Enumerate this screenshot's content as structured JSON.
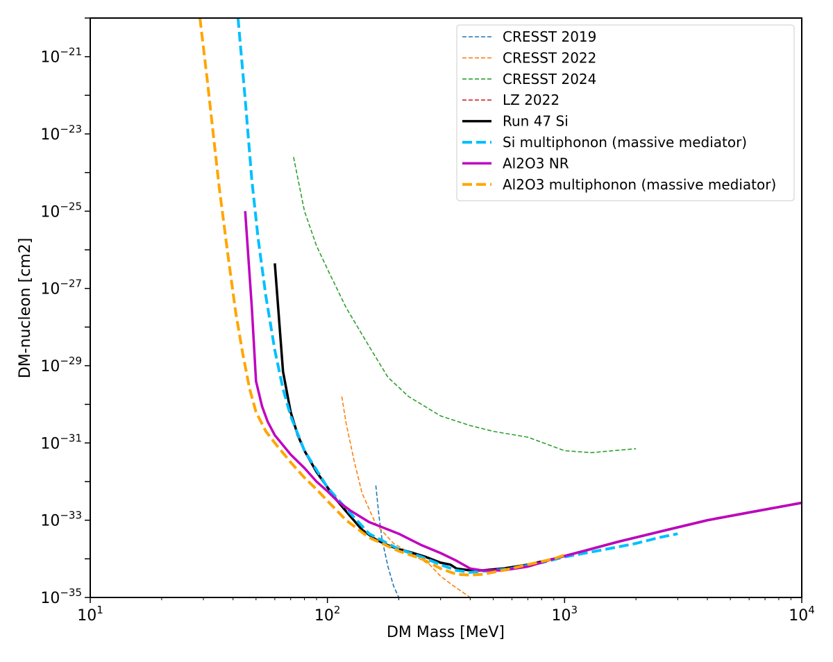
{
  "chart_data": {
    "type": "line",
    "xlabel": "DM Mass [MeV]",
    "ylabel": "DM-nucleon [cm2]",
    "xscale": "log",
    "yscale": "log",
    "xlim": [
      10,
      10000
    ],
    "ylim": [
      1e-35,
      1e-20
    ],
    "grid": false,
    "legend_position": "top-right",
    "x_tick_labels": [
      {
        "base": "10",
        "exp": "1",
        "value": 10
      },
      {
        "base": "10",
        "exp": "2",
        "value": 100
      },
      {
        "base": "10",
        "exp": "3",
        "value": 1000
      },
      {
        "base": "10",
        "exp": "4",
        "value": 10000
      }
    ],
    "y_tick_labels": [
      {
        "base": "10",
        "exp": "−21",
        "value": -21
      },
      {
        "base": "10",
        "exp": "−23",
        "value": -23
      },
      {
        "base": "10",
        "exp": "−25",
        "value": -25
      },
      {
        "base": "10",
        "exp": "−27",
        "value": -27
      },
      {
        "base": "10",
        "exp": "−29",
        "value": -29
      },
      {
        "base": "10",
        "exp": "−31",
        "value": -31
      },
      {
        "base": "10",
        "exp": "−33",
        "value": -33
      },
      {
        "base": "10",
        "exp": "−35",
        "value": -35
      }
    ],
    "series": [
      {
        "name": "CRESST 2019",
        "color": "#1f77b4",
        "style": "dashed-thin",
        "points": [
          [
            160,
            -32.1
          ],
          [
            165,
            -32.9
          ],
          [
            170,
            -33.5
          ],
          [
            180,
            -34.2
          ],
          [
            190,
            -34.7
          ],
          [
            200,
            -35.0
          ]
        ]
      },
      {
        "name": "CRESST 2022",
        "color": "#ff7f0e",
        "style": "dashed-thin",
        "points": [
          [
            115,
            -29.8
          ],
          [
            120,
            -30.5
          ],
          [
            130,
            -31.5
          ],
          [
            140,
            -32.3
          ],
          [
            160,
            -33.1
          ],
          [
            190,
            -33.6
          ],
          [
            230,
            -33.9
          ],
          [
            270,
            -34.15
          ],
          [
            300,
            -34.45
          ],
          [
            340,
            -34.7
          ],
          [
            400,
            -35.0
          ]
        ]
      },
      {
        "name": "CRESST 2024",
        "color": "#2ca02c",
        "style": "dashed-thin",
        "points": [
          [
            72,
            -23.6
          ],
          [
            80,
            -25.0
          ],
          [
            90,
            -25.9
          ],
          [
            100,
            -26.5
          ],
          [
            120,
            -27.5
          ],
          [
            150,
            -28.5
          ],
          [
            180,
            -29.3
          ],
          [
            220,
            -29.8
          ],
          [
            300,
            -30.3
          ],
          [
            400,
            -30.55
          ],
          [
            500,
            -30.7
          ],
          [
            700,
            -30.85
          ],
          [
            1000,
            -31.2
          ],
          [
            1300,
            -31.25
          ],
          [
            1600,
            -31.2
          ],
          [
            2000,
            -31.15
          ]
        ]
      },
      {
        "name": "LZ 2022",
        "color": "#d62728",
        "style": "dashed-thin",
        "points": []
      },
      {
        "name": "Run 47 Si",
        "color": "#000000",
        "style": "solid-thick",
        "points": [
          [
            60,
            -26.35
          ],
          [
            65,
            -29.15
          ],
          [
            70,
            -30.2
          ],
          [
            75,
            -30.8
          ],
          [
            80,
            -31.2
          ],
          [
            90,
            -31.75
          ],
          [
            100,
            -32.15
          ],
          [
            110,
            -32.5
          ],
          [
            125,
            -32.9
          ],
          [
            140,
            -33.25
          ],
          [
            160,
            -33.5
          ],
          [
            180,
            -33.65
          ],
          [
            200,
            -33.75
          ],
          [
            230,
            -33.85
          ],
          [
            260,
            -33.95
          ],
          [
            300,
            -34.1
          ],
          [
            330,
            -34.15
          ],
          [
            350,
            -34.25
          ],
          [
            400,
            -34.3
          ],
          [
            450,
            -34.3
          ],
          [
            550,
            -34.25
          ],
          [
            700,
            -34.15
          ],
          [
            900,
            -34.0
          ],
          [
            1200,
            -33.8
          ],
          [
            1700,
            -33.55
          ],
          [
            2500,
            -33.3
          ],
          [
            4000,
            -33.0
          ],
          [
            6000,
            -32.8
          ],
          [
            10000,
            -32.55
          ]
        ]
      },
      {
        "name": "Si multiphonon (massive mediator)",
        "color": "#00bfff",
        "style": "dashed-thick",
        "points": [
          [
            42,
            -20.0
          ],
          [
            45,
            -22.1
          ],
          [
            48,
            -24.2
          ],
          [
            51,
            -25.7
          ],
          [
            55,
            -27.2
          ],
          [
            60,
            -28.6
          ],
          [
            65,
            -29.6
          ],
          [
            70,
            -30.3
          ],
          [
            80,
            -31.2
          ],
          [
            90,
            -31.7
          ],
          [
            100,
            -32.15
          ],
          [
            120,
            -32.7
          ],
          [
            150,
            -33.35
          ],
          [
            200,
            -33.75
          ],
          [
            250,
            -33.95
          ],
          [
            300,
            -34.15
          ],
          [
            350,
            -34.3
          ],
          [
            400,
            -34.35
          ],
          [
            500,
            -34.3
          ],
          [
            600,
            -34.25
          ],
          [
            800,
            -34.1
          ],
          [
            1000,
            -33.95
          ],
          [
            1500,
            -33.75
          ],
          [
            2000,
            -33.6
          ],
          [
            2500,
            -33.45
          ],
          [
            3000,
            -33.35
          ]
        ]
      },
      {
        "name": "Al2O3 NR",
        "color": "#c000c0",
        "style": "solid-thick",
        "points": [
          [
            45,
            -25.0
          ],
          [
            48,
            -27.5
          ],
          [
            50,
            -29.4
          ],
          [
            53,
            -30.05
          ],
          [
            56,
            -30.45
          ],
          [
            60,
            -30.8
          ],
          [
            70,
            -31.3
          ],
          [
            80,
            -31.65
          ],
          [
            90,
            -32.0
          ],
          [
            100,
            -32.25
          ],
          [
            110,
            -32.5
          ],
          [
            125,
            -32.75
          ],
          [
            150,
            -33.05
          ],
          [
            200,
            -33.35
          ],
          [
            250,
            -33.65
          ],
          [
            300,
            -33.85
          ],
          [
            350,
            -34.05
          ],
          [
            400,
            -34.25
          ],
          [
            450,
            -34.3
          ],
          [
            550,
            -34.3
          ],
          [
            700,
            -34.2
          ],
          [
            900,
            -34.0
          ],
          [
            1200,
            -33.8
          ],
          [
            1700,
            -33.55
          ],
          [
            2500,
            -33.3
          ],
          [
            4000,
            -33.0
          ],
          [
            6000,
            -32.8
          ],
          [
            10000,
            -32.55
          ]
        ]
      },
      {
        "name": "Al2O3 multiphonon (massive mediator)",
        "color": "#ffa500",
        "style": "dashed-thick",
        "points": [
          [
            29,
            -20.0
          ],
          [
            31,
            -21.5
          ],
          [
            33,
            -23.0
          ],
          [
            35,
            -24.4
          ],
          [
            38,
            -26.1
          ],
          [
            41,
            -27.6
          ],
          [
            44,
            -28.7
          ],
          [
            47,
            -29.6
          ],
          [
            50,
            -30.2
          ],
          [
            55,
            -30.7
          ],
          [
            60,
            -31.0
          ],
          [
            70,
            -31.5
          ],
          [
            80,
            -31.9
          ],
          [
            90,
            -32.2
          ],
          [
            100,
            -32.5
          ],
          [
            120,
            -33.0
          ],
          [
            150,
            -33.45
          ],
          [
            200,
            -33.8
          ],
          [
            250,
            -34.0
          ],
          [
            300,
            -34.25
          ],
          [
            350,
            -34.4
          ],
          [
            400,
            -34.42
          ],
          [
            450,
            -34.4
          ],
          [
            550,
            -34.3
          ],
          [
            700,
            -34.15
          ],
          [
            900,
            -34.0
          ],
          [
            1000,
            -33.9
          ]
        ]
      }
    ]
  }
}
